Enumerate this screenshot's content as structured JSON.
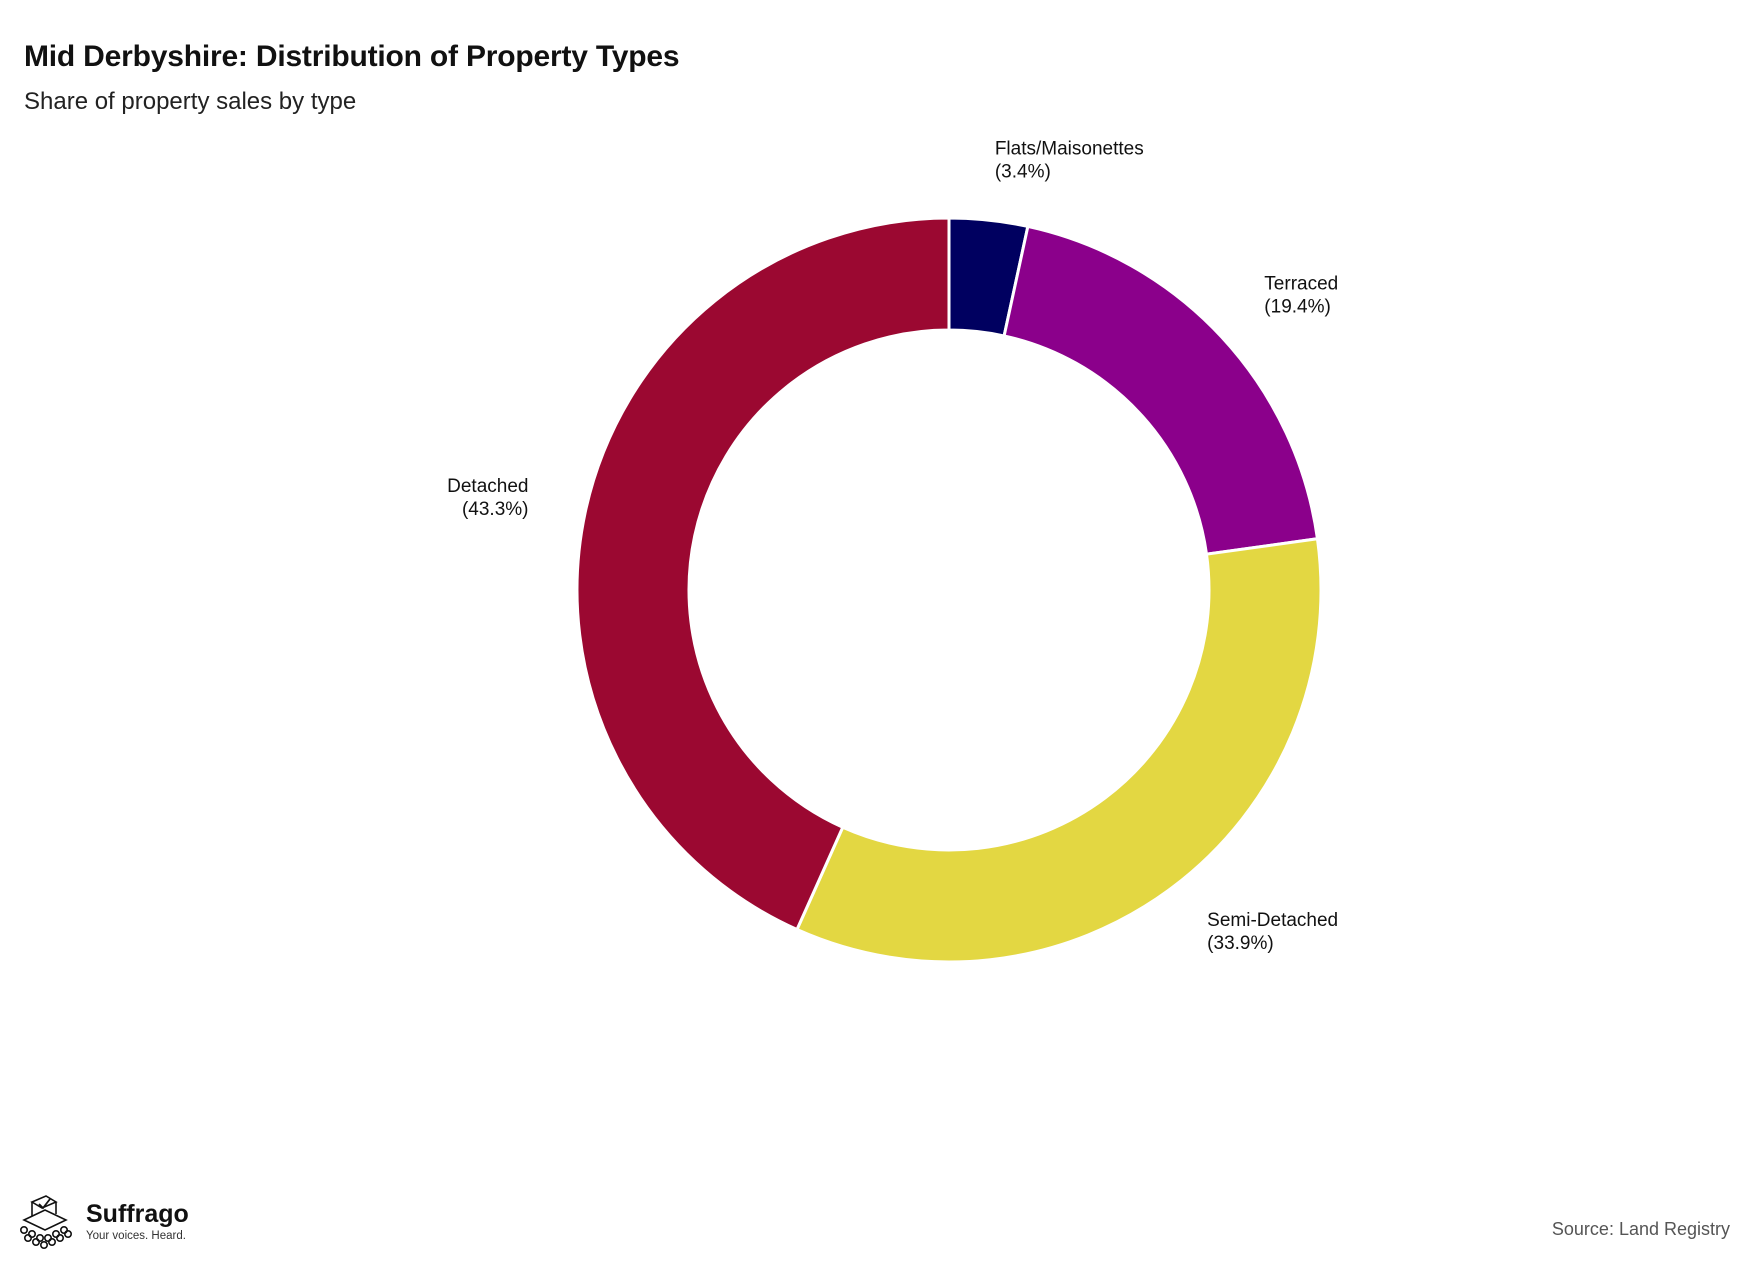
{
  "title": "Mid Derbyshire: Distribution of Property Types",
  "subtitle": "Share of property sales by type",
  "source": "Source: Land Registry",
  "brand": {
    "name": "Suffrago",
    "tagline": "Your voices. Heard."
  },
  "chart_data": {
    "type": "pie",
    "variant": "donut",
    "start": "12 o'clock, clockwise",
    "labels": [
      "Flats/Maisonettes",
      "Terraced",
      "Semi-Detached",
      "Detached"
    ],
    "values": [
      3.4,
      19.4,
      33.9,
      43.3
    ],
    "display": [
      "(3.4%)",
      "(19.4%)",
      "(33.9%)",
      "(43.3%)"
    ],
    "colors": [
      "#000060",
      "#8b008b",
      "#e3d742",
      "#9b0831"
    ],
    "legend": "none"
  }
}
